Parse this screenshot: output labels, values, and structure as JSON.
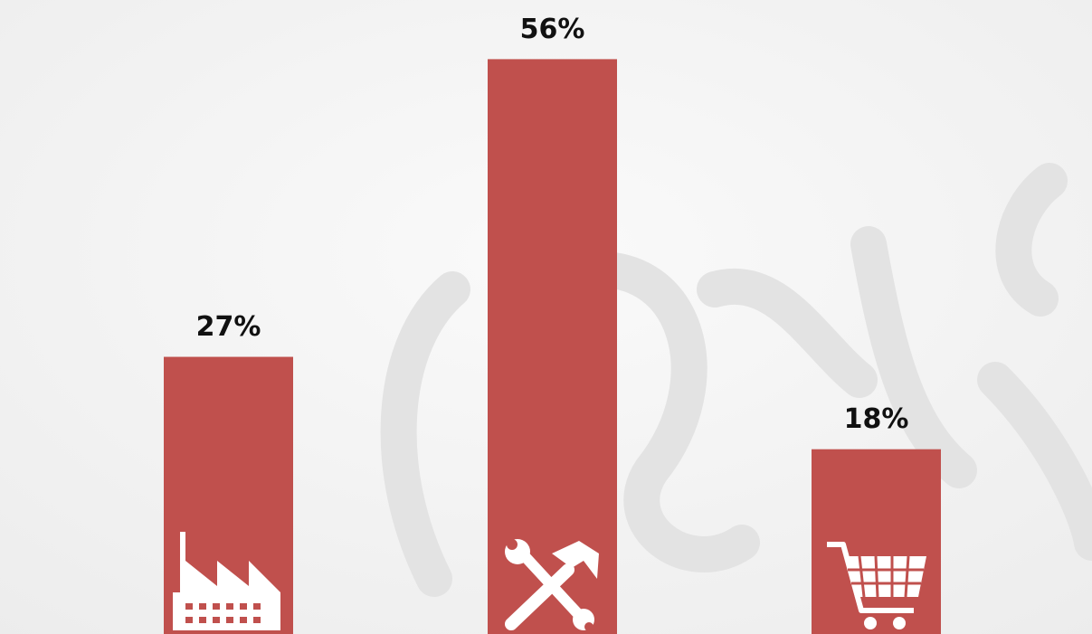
{
  "chart_data": {
    "type": "bar",
    "categories": [
      null,
      null,
      null
    ],
    "values": [
      27,
      56,
      18
    ],
    "value_labels": [
      "27%",
      "56%",
      "18%"
    ],
    "color": "#c0504d"
  }
}
